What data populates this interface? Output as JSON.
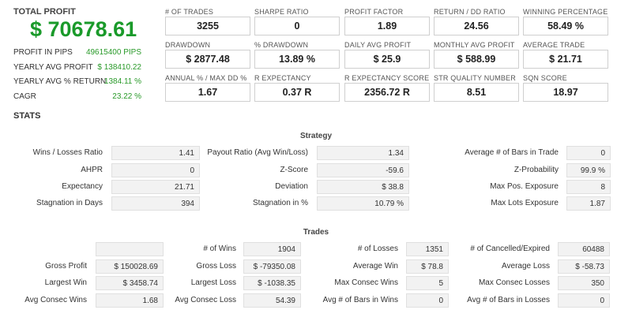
{
  "summary": {
    "total_profit_label": "TOTAL PROFIT",
    "total_profit_value": "$ 70678.61",
    "rows": [
      {
        "label": "PROFIT IN PIPS",
        "value": "49615400 PIPS"
      },
      {
        "label": "YEARLY AVG PROFIT",
        "value": "$ 138410.22"
      },
      {
        "label": "YEARLY AVG % RETURN",
        "value": "1384.11 %"
      },
      {
        "label": "CAGR",
        "value": "23.22 %"
      }
    ]
  },
  "metrics": [
    [
      {
        "label": "# OF TRADES",
        "value": "3255"
      },
      {
        "label": "SHARPE RATIO",
        "value": "0"
      },
      {
        "label": "PROFIT FACTOR",
        "value": "1.89"
      },
      {
        "label": "RETURN / DD RATIO",
        "value": "24.56"
      },
      {
        "label": "WINNING PERCENTAGE",
        "value": "58.49 %"
      }
    ],
    [
      {
        "label": "DRAWDOWN",
        "value": "$ 2877.48"
      },
      {
        "label": "% DRAWDOWN",
        "value": "13.89 %"
      },
      {
        "label": "DAILY AVG PROFIT",
        "value": "$ 25.9"
      },
      {
        "label": "MONTHLY AVG PROFIT",
        "value": "$ 588.99"
      },
      {
        "label": "AVERAGE TRADE",
        "value": "$ 21.71"
      }
    ],
    [
      {
        "label": "ANNUAL % / MAX DD %",
        "value": "1.67"
      },
      {
        "label": "R EXPECTANCY",
        "value": "0.37 R"
      },
      {
        "label": "R EXPECTANCY SCORE",
        "value": "2356.72 R"
      },
      {
        "label": "STR QUALITY NUMBER",
        "value": "8.51"
      },
      {
        "label": "SQN SCORE",
        "value": "18.97"
      }
    ]
  ],
  "stats": {
    "title": "STATS",
    "strategy": {
      "title": "Strategy",
      "rows": [
        [
          {
            "label": "Wins / Losses Ratio",
            "value": "1.41"
          },
          {
            "label": "Payout Ratio (Avg Win/Loss)",
            "value": "1.34"
          },
          {
            "label": "Average # of Bars in Trade",
            "value": "0"
          }
        ],
        [
          {
            "label": "AHPR",
            "value": "0"
          },
          {
            "label": "Z-Score",
            "value": "-59.6"
          },
          {
            "label": "Z-Probability",
            "value": "99.9 %"
          }
        ],
        [
          {
            "label": "Expectancy",
            "value": "21.71"
          },
          {
            "label": "Deviation",
            "value": "$ 38.8"
          },
          {
            "label": "Max Pos. Exposure",
            "value": "8"
          }
        ],
        [
          {
            "label": "Stagnation in Days",
            "value": "394"
          },
          {
            "label": "Stagnation in %",
            "value": "10.79 %"
          },
          {
            "label": "Max Lots Exposure",
            "value": "1.87"
          }
        ]
      ]
    },
    "trades": {
      "title": "Trades",
      "rows": [
        [
          {
            "label": "",
            "value": ""
          },
          {
            "label": "# of Wins",
            "value": "1904"
          },
          {
            "label": "# of Losses",
            "value": "1351"
          },
          {
            "label": "# of Cancelled/Expired",
            "value": "60488"
          }
        ],
        [
          {
            "label": "Gross Profit",
            "value": "$ 150028.69"
          },
          {
            "label": "Gross Loss",
            "value": "$ -79350.08"
          },
          {
            "label": "Average Win",
            "value": "$ 78.8"
          },
          {
            "label": "Average Loss",
            "value": "$ -58.73"
          }
        ],
        [
          {
            "label": "Largest Win",
            "value": "$ 3458.74"
          },
          {
            "label": "Largest Loss",
            "value": "$ -1038.35"
          },
          {
            "label": "Max Consec Wins",
            "value": "5"
          },
          {
            "label": "Max Consec Losses",
            "value": "350"
          }
        ],
        [
          {
            "label": "Avg Consec Wins",
            "value": "1.68"
          },
          {
            "label": "Avg Consec Loss",
            "value": "54.39"
          },
          {
            "label": "Avg # of Bars in Wins",
            "value": "0"
          },
          {
            "label": "Avg # of Bars in Losses",
            "value": "0"
          }
        ]
      ]
    }
  },
  "colors": {
    "profit_green": "#1a9a2a",
    "value_green": "#2a9a2a",
    "box_border": "#cfcfcf",
    "cell_bg": "#f2f2f2"
  }
}
